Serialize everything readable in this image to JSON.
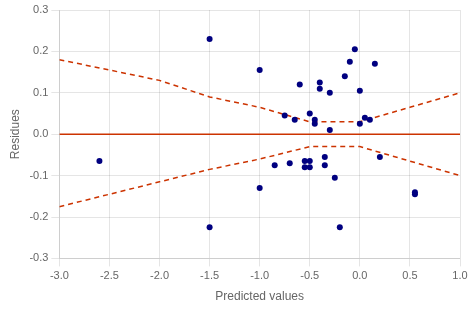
{
  "chart_data": {
    "type": "scatter",
    "xlabel": "Predicted values",
    "ylabel": "Residues",
    "xlim": [
      -3.0,
      1.0
    ],
    "ylim": [
      -0.3,
      0.3
    ],
    "xticks": [
      {
        "value": -3.0,
        "label": "-3.0"
      },
      -2.5,
      {
        "value": -2.0,
        "label": "-2.0"
      },
      -1.5,
      {
        "value": -1.0,
        "label": "-1.0"
      },
      -0.5,
      {
        "value": 0.0,
        "label": "0.0"
      },
      0.5,
      {
        "value": 1.0,
        "label": "1.0"
      }
    ],
    "yticks": [
      -0.3,
      -0.2,
      -0.1,
      {
        "value": 0.0,
        "label": "0.0"
      },
      0.1,
      0.2,
      0.3
    ],
    "grid": true,
    "hline": {
      "value": 0.0,
      "color": "#cc3300"
    },
    "series": [
      {
        "type": "scatter",
        "color": "#000080",
        "marker": "circle",
        "x": [
          -2.6,
          -1.5,
          -1.5,
          -1.0,
          -1.0,
          -0.85,
          -0.75,
          -0.7,
          -0.65,
          -0.6,
          -0.55,
          -0.55,
          -0.5,
          -0.5,
          -0.5,
          -0.45,
          -0.45,
          -0.4,
          -0.4,
          -0.35,
          -0.35,
          -0.3,
          -0.3,
          -0.25,
          -0.2,
          -0.15,
          -0.1,
          -0.05,
          0.0,
          0.0,
          0.05,
          0.1,
          0.15,
          0.2,
          0.55,
          0.55
        ],
        "values": [
          -0.065,
          0.23,
          -0.225,
          0.155,
          -0.13,
          -0.075,
          0.045,
          -0.07,
          0.035,
          0.12,
          -0.08,
          -0.065,
          0.05,
          -0.08,
          -0.065,
          0.035,
          0.025,
          0.125,
          0.11,
          -0.075,
          -0.055,
          0.1,
          0.01,
          -0.105,
          -0.225,
          0.14,
          0.175,
          0.205,
          0.105,
          0.025,
          0.04,
          0.035,
          0.17,
          -0.055,
          -0.14,
          -0.145
        ]
      },
      {
        "type": "line",
        "color": "#cc3300",
        "line_style": "dashed",
        "x": [
          -3.0,
          -2.5,
          -2.0,
          -1.5,
          -1.0,
          -0.5,
          0.0,
          0.5,
          1.0
        ],
        "values": [
          0.18,
          0.155,
          0.13,
          0.09,
          0.065,
          0.03,
          0.03,
          0.065,
          0.1
        ]
      },
      {
        "type": "line",
        "color": "#cc3300",
        "line_style": "dashed",
        "x": [
          -3.0,
          -2.5,
          -2.0,
          -1.5,
          -1.0,
          -0.5,
          0.0,
          0.5,
          1.0
        ],
        "values": [
          -0.175,
          -0.145,
          -0.115,
          -0.085,
          -0.06,
          -0.03,
          -0.03,
          -0.065,
          -0.1
        ]
      }
    ]
  }
}
